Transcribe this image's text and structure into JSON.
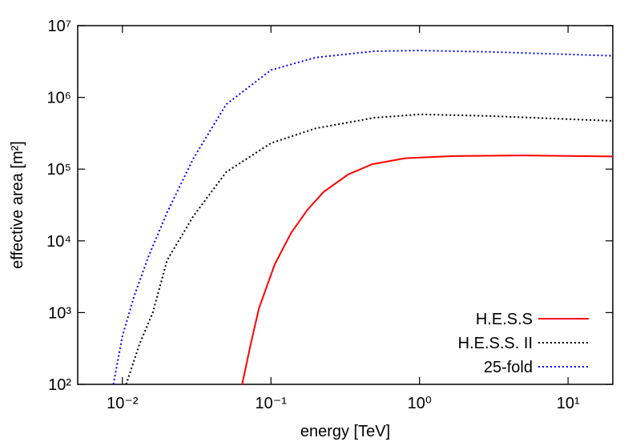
{
  "chart_data": {
    "type": "line",
    "x_label": "energy [TeV]",
    "y_label": "effective area [m²]",
    "xscale": "log",
    "yscale": "log",
    "xlim": [
      0.005,
      20
    ],
    "ylim": [
      100,
      10000000
    ],
    "xticks": [
      {
        "value": 0.01,
        "label": "10⁻²"
      },
      {
        "value": 0.1,
        "label": "10⁻¹"
      },
      {
        "value": 1,
        "label": "10⁰"
      },
      {
        "value": 10,
        "label": "10¹"
      }
    ],
    "yticks": [
      {
        "value": 100,
        "label": "10²"
      },
      {
        "value": 1000,
        "label": "10³"
      },
      {
        "value": 10000,
        "label": "10⁴"
      },
      {
        "value": 100000,
        "label": "10⁵"
      },
      {
        "value": 1000000,
        "label": "10⁶"
      },
      {
        "value": 10000000,
        "label": "10⁷"
      }
    ],
    "legend": "bottom-right",
    "series": [
      {
        "name": "H.E.S.S",
        "color": "#ff0000",
        "style": "solid",
        "x": [
          0.064,
          0.073,
          0.083,
          0.106,
          0.137,
          0.176,
          0.226,
          0.33,
          0.48,
          0.8,
          1.7,
          5,
          20
        ],
        "values": [
          100,
          360,
          1150,
          4700,
          13000,
          27000,
          48000,
          84000,
          117000,
          142000,
          152000,
          155000,
          150000
        ]
      },
      {
        "name": "H.E.S.S. II",
        "color": "#000000",
        "style": "dotted",
        "x": [
          0.0106,
          0.013,
          0.016,
          0.02,
          0.03,
          0.05,
          0.1,
          0.2,
          0.5,
          1,
          3,
          20
        ],
        "values": [
          100,
          360,
          1000,
          5400,
          22000,
          91000,
          230000,
          370000,
          520000,
          580000,
          550000,
          470000
        ]
      },
      {
        "name": "25-fold",
        "color": "#0000ff",
        "style": "dotted",
        "x": [
          0.0087,
          0.01,
          0.012,
          0.015,
          0.02,
          0.03,
          0.05,
          0.1,
          0.2,
          0.5,
          1,
          3,
          20
        ],
        "values": [
          100,
          470,
          1700,
          6100,
          25000,
          140000,
          800000,
          2400000,
          3600000,
          4400000,
          4500000,
          4300000,
          3800000
        ]
      }
    ]
  }
}
